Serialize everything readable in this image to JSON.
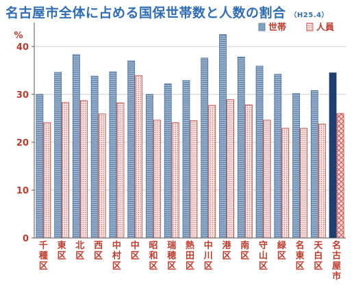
{
  "chart_data": {
    "type": "bar",
    "title": "名古屋市全体に占める国保世帯数と人数の割合",
    "subtitle": "（H25.4）",
    "yunit": "%",
    "ylim": [
      0,
      45
    ],
    "yticks": [
      0,
      10,
      20,
      30,
      40
    ],
    "legend_position": "top-right",
    "categories": [
      "千種区",
      "東区",
      "北区",
      "西区",
      "中村区",
      "中区",
      "昭和区",
      "瑞穂区",
      "熱田区",
      "中川区",
      "港区",
      "南区",
      "守山区",
      "緑区",
      "名東区",
      "天白区",
      "名古屋市"
    ],
    "series": [
      {
        "name": "世帯",
        "values": [
          30,
          34.6,
          38.3,
          33.8,
          34.7,
          37,
          30,
          32.2,
          32.9,
          37.6,
          42.5,
          37.8,
          35.9,
          34.2,
          30.2,
          30.8,
          34.5
        ]
      },
      {
        "name": "人員",
        "values": [
          24.1,
          28.3,
          28.7,
          25.9,
          28.2,
          33.9,
          24.6,
          24.1,
          24.5,
          27.7,
          28.9,
          27.8,
          24.6,
          22.9,
          22.9,
          23.8,
          26
        ]
      }
    ],
    "colors": {
      "households": "#8ea9c9",
      "households_stripe": "#6e8fb5",
      "members": "#f2d3d3",
      "members_dots": "#c0392b",
      "city_households": "#1f3f73",
      "city_members": "#f6c0c4",
      "city_members_hatch": "#c0392b",
      "axis": "#555555",
      "grid": "#cfcfcf",
      "text_red": "#c0392b",
      "title_blue": "#2e6db4"
    }
  }
}
